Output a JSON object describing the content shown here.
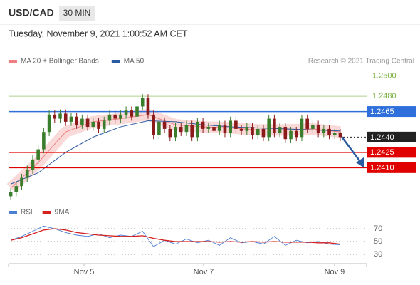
{
  "header": {
    "symbol": "USD/CAD",
    "timeframe": "30 MIN",
    "datetime": "Tuesday, November 9, 2021 1:00:52 AM CET"
  },
  "chart_data": [
    {
      "type": "candlestick",
      "source": "Research © 2021 Trading Central",
      "xlim": [
        -0.4,
        64.8
      ],
      "ylim": [
        1.2376,
        1.2508
      ],
      "up_color": "#3a7d2c",
      "down_color": "#8b1a1a",
      "open": [
        1.2382,
        1.2386,
        1.2392,
        1.24,
        1.2408,
        1.2418,
        1.2428,
        1.2445,
        1.2462,
        1.2458,
        1.2463,
        1.2455,
        1.246,
        1.2452,
        1.2458,
        1.245,
        1.2455,
        1.2448,
        1.2456,
        1.2462,
        1.2458,
        1.2462,
        1.2466,
        1.246,
        1.247,
        1.2478,
        1.2462,
        1.2442,
        1.2455,
        1.2448,
        1.244,
        1.245,
        1.2445,
        1.2452,
        1.244,
        1.2455,
        1.2448,
        1.245,
        1.2446,
        1.2452,
        1.2444,
        1.2456,
        1.2448,
        1.2446,
        1.245,
        1.2442,
        1.2448,
        1.244,
        1.2458,
        1.2444,
        1.245,
        1.2438,
        1.2446,
        1.244,
        1.2458,
        1.2448,
        1.2452,
        1.2444,
        1.2448,
        1.2442,
        1.2444
      ],
      "high": [
        1.239,
        1.2396,
        1.2404,
        1.2412,
        1.2422,
        1.2432,
        1.2449,
        1.2466,
        1.2466,
        1.2467,
        1.2467,
        1.2464,
        1.2464,
        1.2462,
        1.2462,
        1.2459,
        1.2459,
        1.246,
        1.2466,
        1.2466,
        1.2466,
        1.247,
        1.247,
        1.2474,
        1.2482,
        1.2482,
        1.2466,
        1.2459,
        1.2459,
        1.2452,
        1.2454,
        1.2454,
        1.2456,
        1.2456,
        1.2459,
        1.2459,
        1.2454,
        1.2454,
        1.2456,
        1.2456,
        1.246,
        1.246,
        1.2452,
        1.2454,
        1.2454,
        1.2452,
        1.2452,
        1.2462,
        1.2462,
        1.2454,
        1.2454,
        1.245,
        1.245,
        1.2462,
        1.2462,
        1.2456,
        1.2456,
        1.2452,
        1.2452,
        1.2448,
        1.2448
      ],
      "low": [
        1.2378,
        1.2382,
        1.2388,
        1.2396,
        1.2404,
        1.2414,
        1.2424,
        1.2441,
        1.2454,
        1.2454,
        1.2451,
        1.2451,
        1.2448,
        1.2448,
        1.2446,
        1.2446,
        1.2444,
        1.2444,
        1.2452,
        1.2454,
        1.2454,
        1.2458,
        1.2456,
        1.2456,
        1.2466,
        1.2458,
        1.2438,
        1.2438,
        1.2444,
        1.2436,
        1.2436,
        1.2441,
        1.2441,
        1.2436,
        1.2436,
        1.2444,
        1.2444,
        1.2442,
        1.2442,
        1.244,
        1.244,
        1.2444,
        1.2442,
        1.2442,
        1.2438,
        1.2438,
        1.2436,
        1.2436,
        1.244,
        1.244,
        1.2434,
        1.2434,
        1.2436,
        1.2436,
        1.2444,
        1.2444,
        1.244,
        1.244,
        1.2438,
        1.2438,
        1.2436
      ],
      "close": [
        1.2386,
        1.2392,
        1.24,
        1.2408,
        1.2418,
        1.2428,
        1.2445,
        1.2462,
        1.2458,
        1.2463,
        1.2455,
        1.246,
        1.2452,
        1.2458,
        1.245,
        1.2455,
        1.2448,
        1.2456,
        1.2462,
        1.2458,
        1.2462,
        1.2466,
        1.246,
        1.247,
        1.2478,
        1.2462,
        1.2442,
        1.2455,
        1.2448,
        1.244,
        1.245,
        1.2445,
        1.2452,
        1.244,
        1.2455,
        1.2448,
        1.245,
        1.2446,
        1.2452,
        1.2444,
        1.2456,
        1.2448,
        1.2446,
        1.245,
        1.2442,
        1.2448,
        1.244,
        1.2458,
        1.2444,
        1.245,
        1.2438,
        1.2446,
        1.244,
        1.2458,
        1.2448,
        1.2452,
        1.2444,
        1.2448,
        1.2442,
        1.2444,
        1.244
      ],
      "ma_x": [
        0,
        5,
        10,
        15,
        20,
        25,
        30,
        35,
        40,
        45,
        50,
        55,
        60
      ],
      "series": [
        {
          "name": "MA 20 + Bollinger Bands",
          "color": "#f08080",
          "values": [
            1.239,
            1.2415,
            1.2445,
            1.2455,
            1.2458,
            1.2462,
            1.2452,
            1.245,
            1.2449,
            1.2447,
            1.2447,
            1.2448,
            1.2445
          ]
        },
        {
          "name": "MA 50",
          "color": "#2a5aa0",
          "values": [
            1.2394,
            1.2405,
            1.2425,
            1.244,
            1.245,
            1.2456,
            1.2455,
            1.2452,
            1.245,
            1.2449,
            1.2448,
            1.2447,
            1.2446
          ]
        }
      ],
      "levels": [
        {
          "value": 1.25,
          "label": "1.2500",
          "color": "#7cb342",
          "boxed": false,
          "dotted": false
        },
        {
          "value": 1.248,
          "label": "1.2480",
          "color": "#7cb342",
          "boxed": false,
          "dotted": false
        },
        {
          "value": 1.2465,
          "label": "1.2465",
          "color": "#2f6fdb",
          "boxed": true,
          "dotted": false
        },
        {
          "value": 1.244,
          "label": "1.2440",
          "color": "#222222",
          "boxed": true,
          "dotted": true
        },
        {
          "value": 1.2425,
          "label": "1.2425",
          "color": "#e00000",
          "boxed": true,
          "dotted": false
        },
        {
          "value": 1.241,
          "label": "1.2410",
          "color": "#e00000",
          "boxed": true,
          "dotted": false
        }
      ]
    },
    {
      "type": "line",
      "xlim": [
        -0.4,
        64.8
      ],
      "ylim": [
        10,
        90
      ],
      "yticks": [
        30,
        50,
        70
      ],
      "xticks": [
        {
          "value": 13.34,
          "label": "Nov 5"
        },
        {
          "value": 35.12,
          "label": "Nov 7"
        },
        {
          "value": 58.96,
          "label": "Nov 9"
        }
      ],
      "x": [
        0,
        2,
        4,
        6,
        8,
        10,
        12,
        14,
        16,
        18,
        20,
        22,
        24,
        26,
        28,
        30,
        32,
        34,
        36,
        38,
        40,
        42,
        44,
        46,
        48,
        50,
        52,
        54,
        56,
        58,
        60
      ],
      "series": [
        {
          "name": "RSI",
          "color": "#4a7fd6",
          "values": [
            52,
            58,
            66,
            74,
            70,
            64,
            60,
            58,
            62,
            56,
            60,
            58,
            66,
            42,
            52,
            46,
            54,
            48,
            52,
            44,
            56,
            48,
            50,
            46,
            58,
            44,
            52,
            48,
            50,
            46,
            45
          ]
        },
        {
          "name": "9MA",
          "color": "#d62020",
          "values": [
            52,
            56,
            62,
            68,
            70,
            68,
            64,
            62,
            60,
            59,
            58,
            58,
            59,
            55,
            52,
            50,
            50,
            50,
            50,
            49,
            50,
            49,
            50,
            49,
            50,
            49,
            49,
            49,
            48,
            48,
            46
          ]
        }
      ]
    }
  ]
}
